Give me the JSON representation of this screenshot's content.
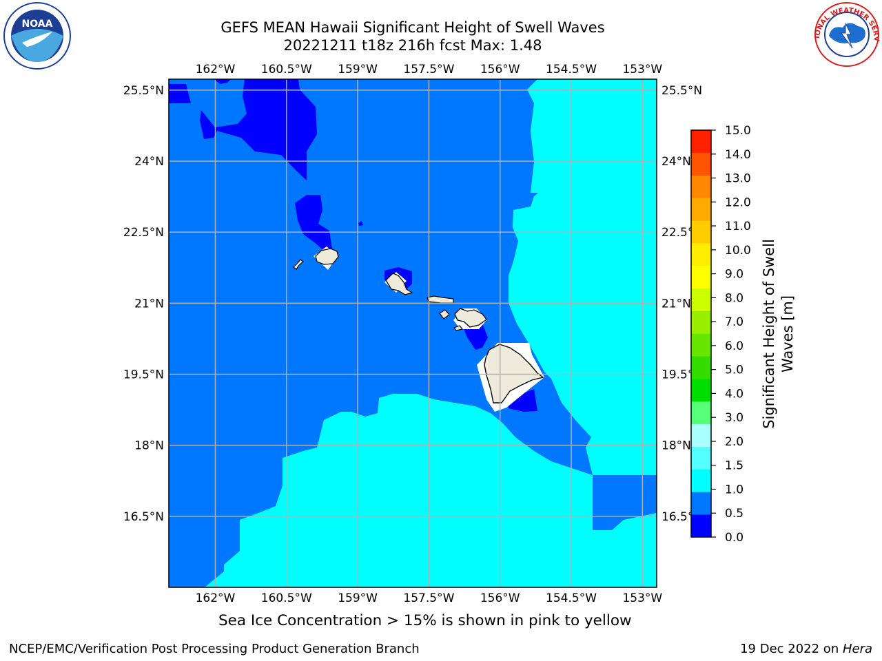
{
  "header": {
    "title_line1": "GEFS MEAN Hawaii Significant Height of Swell Waves",
    "title_line2": "20221211 t18z 216h fcst   Max: 1.48"
  },
  "map": {
    "lon_labels": [
      "162°W",
      "160.5°W",
      "159°W",
      "157.5°W",
      "156°W",
      "154.5°W",
      "153°W"
    ],
    "lat_labels": [
      "25.5°N",
      "24°N",
      "22.5°N",
      "21°N",
      "19.5°N",
      "18°N",
      "16.5°N"
    ],
    "lon_ticks": [
      -162,
      -160.5,
      -159,
      -157.5,
      -156,
      -154.5,
      -153
    ],
    "lat_ticks": [
      25.5,
      24,
      22.5,
      21,
      19.5,
      18,
      16.5
    ],
    "extent": {
      "lon_min": -162.98,
      "lon_max": -152.7,
      "lat_min": 15.0,
      "lat_max": 25.73
    },
    "grid": true,
    "colors": {
      "lt05": "#0000ff",
      "c05_10": "#0077ff",
      "c10_15": "#00ffff",
      "land": "#efebdc",
      "grid": "#b0b0b0"
    }
  },
  "colorbar": {
    "label": "Significant Height of Swell Waves [m]",
    "label_line1": "Significant Height of Swell",
    "label_line2": "Waves [m]",
    "ticks": [
      "0.0",
      "0.5",
      "1.0",
      "1.5",
      "2.0",
      "3.0",
      "4.0",
      "5.0",
      "6.0",
      "7.0",
      "8.0",
      "9.0",
      "10.0",
      "11.0",
      "12.0",
      "13.0",
      "14.0",
      "15.0"
    ],
    "colors": [
      "#0000ff",
      "#0077ff",
      "#00ffff",
      "#55ffff",
      "#aaffff",
      "#55ff77",
      "#00dd00",
      "#33dd00",
      "#66e600",
      "#99ee00",
      "#ccff00",
      "#ffff00",
      "#ffee00",
      "#ffcc00",
      "#ffaa00",
      "#ff8800",
      "#ff5500",
      "#ff2200"
    ]
  },
  "caption": "Sea Ice Concentration > 15% is shown in pink to yellow",
  "footer": {
    "left": "NCEP/EMC/Verification Post Processing Product Generation Branch",
    "right_prefix": "19 Dec 2022 on ",
    "right_italic": "Hera"
  },
  "logos": {
    "noaa_text": "NOAA",
    "nws_text": "NATIONAL WEATHER SERVICE"
  }
}
